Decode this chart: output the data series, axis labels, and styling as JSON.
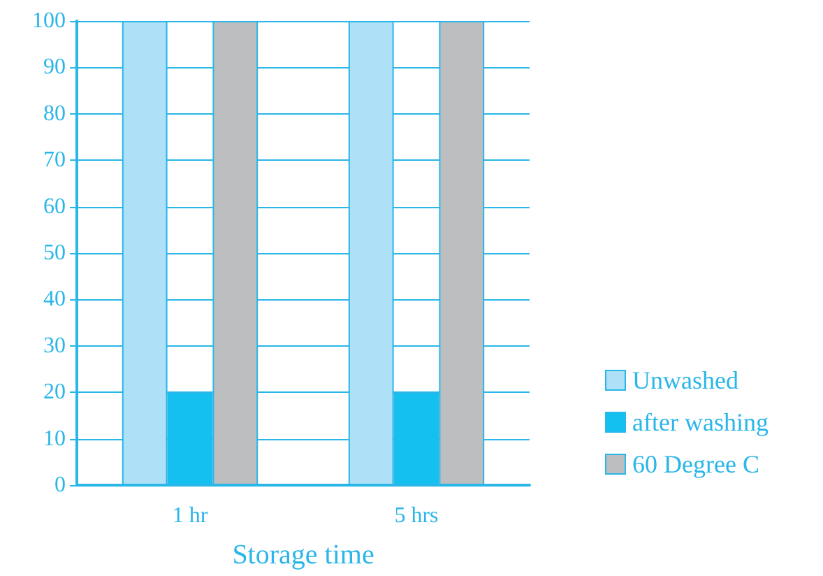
{
  "chart_data": {
    "type": "bar",
    "xlabel": "Storage time",
    "categories": [
      "1 hr",
      "5 hrs"
    ],
    "series": [
      {
        "name": "Unwashed",
        "color": "#aee0f8",
        "values": [
          100,
          100
        ]
      },
      {
        "name": "after washing",
        "color": "#14c0f0",
        "values": [
          20,
          20
        ]
      },
      {
        "name": "60 Degree C",
        "color": "#bcbec0",
        "values": [
          100,
          100
        ]
      }
    ],
    "ylim": [
      0,
      100
    ],
    "yticks": [
      0,
      10,
      20,
      30,
      40,
      50,
      60,
      70,
      80,
      90,
      100
    ],
    "grid": "y",
    "legend": "right"
  }
}
